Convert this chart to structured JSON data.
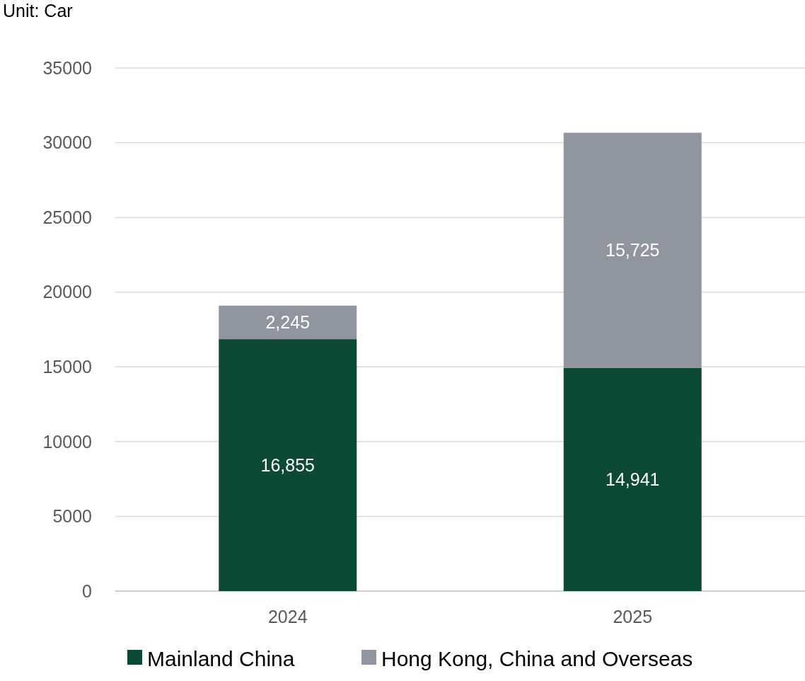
{
  "chart_data": {
    "type": "bar",
    "stacked": true,
    "categories": [
      "2024",
      "2025"
    ],
    "series": [
      {
        "name": "Mainland China",
        "color": "#0d4a35",
        "values": [
          16855,
          14941
        ],
        "value_labels": [
          "16,855",
          "14,941"
        ]
      },
      {
        "name": "Hong Kong, China and Overseas",
        "color": "#9096a0",
        "values": [
          2245,
          15725
        ],
        "value_labels": [
          "2,245",
          "15,725"
        ]
      }
    ],
    "ylim": [
      0,
      35000
    ],
    "yticks": [
      0,
      5000,
      10000,
      15000,
      20000,
      25000,
      30000,
      35000
    ],
    "grid": "y",
    "legend": "bottom",
    "annotations": [
      "Unit: Car"
    ]
  }
}
